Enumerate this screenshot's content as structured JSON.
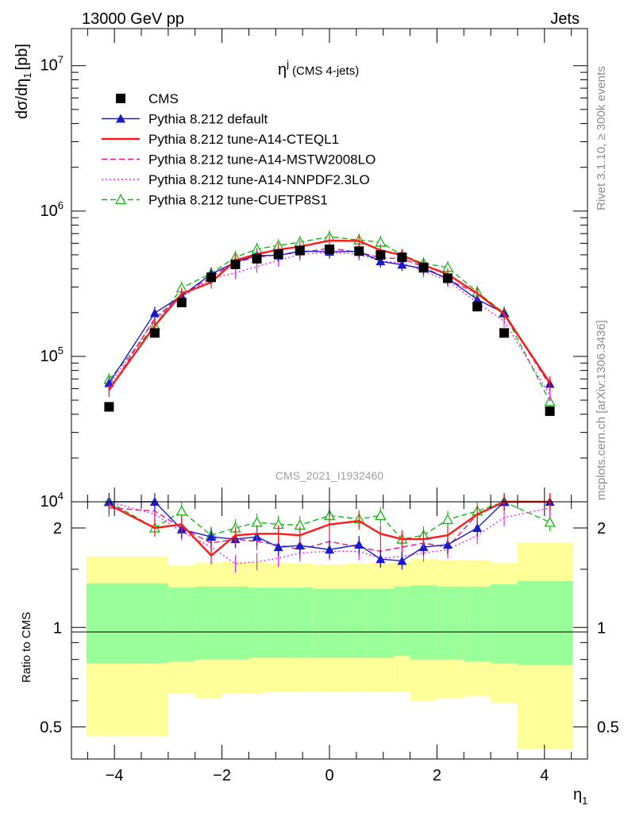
{
  "header": {
    "left": "13000 GeV pp",
    "right": "Jets",
    "plot_title": "η",
    "plot_title_sup": "j",
    "plot_title_note": "(CMS 4-jets)",
    "analysis_id": "CMS_2021_I1932460",
    "side_top": "Rivet 3.1.10, ≥ 300k events",
    "side_bottom": "mcplots.cern.ch [arXiv:1306.3436]"
  },
  "axes": {
    "main_ylabel": "dσ/dη",
    "main_ylabel_sub": "1",
    "main_ylabel_unit": "[pb]",
    "ratio_ylabel": "Ratio to CMS",
    "xlabel": "η",
    "xlabel_sub": "1",
    "x_ticks": [
      "−4",
      "−2",
      "0",
      "2",
      "4"
    ],
    "main_y_ticks": [
      {
        "base": "10",
        "exp": "4",
        "value": 10000
      },
      {
        "base": "10",
        "exp": "5",
        "value": 100000
      },
      {
        "base": "10",
        "exp": "6",
        "value": 1000000
      },
      {
        "base": "10",
        "exp": "7",
        "value": 10000000
      }
    ],
    "ratio_y_ticks": [
      "0.5",
      "1",
      "2"
    ]
  },
  "chart_data": {
    "type": "scatter",
    "xlim": [
      -4.8,
      4.8
    ],
    "main_ylim": [
      10000,
      18000000
    ],
    "main_yscale": "log",
    "ratio_ylim": [
      0.4,
      2.4
    ],
    "ratio_yscale": "log",
    "legend_placement": "top-left",
    "x": [
      -4.1,
      -3.25,
      -2.75,
      -2.2,
      -1.75,
      -1.35,
      -0.95,
      -0.55,
      0,
      0.55,
      0.95,
      1.35,
      1.75,
      2.2,
      2.75,
      3.25,
      4.1
    ],
    "bin_edges": [
      -4.7,
      -3.5,
      -3.0,
      -2.5,
      -2.0,
      -1.5,
      -1.2,
      -0.7,
      -0.3,
      0.3,
      0.7,
      1.2,
      1.5,
      2.0,
      2.5,
      3.0,
      3.5,
      4.7
    ],
    "band_inner": {
      "lo": [
        0.78,
        0.78,
        0.79,
        0.8,
        0.8,
        0.81,
        0.81,
        0.81,
        0.81,
        0.81,
        0.81,
        0.82,
        0.8,
        0.8,
        0.79,
        0.78,
        0.77
      ],
      "hi": [
        1.36,
        1.36,
        1.32,
        1.33,
        1.33,
        1.32,
        1.32,
        1.32,
        1.31,
        1.31,
        1.31,
        1.33,
        1.34,
        1.33,
        1.33,
        1.35,
        1.38
      ]
    },
    "band_outer": {
      "lo": [
        0.47,
        0.47,
        0.63,
        0.61,
        0.63,
        0.63,
        0.64,
        0.64,
        0.64,
        0.64,
        0.64,
        0.64,
        0.6,
        0.61,
        0.62,
        0.59,
        0.43
      ],
      "hi": [
        1.64,
        1.64,
        1.54,
        1.57,
        1.58,
        1.58,
        1.57,
        1.56,
        1.55,
        1.56,
        1.56,
        1.58,
        1.61,
        1.6,
        1.6,
        1.57,
        1.81
      ]
    },
    "series": [
      {
        "name": "CMS",
        "color": "#000000",
        "marker": "square",
        "line": "none",
        "values": [
          45000,
          145000,
          235000,
          350000,
          430000,
          470000,
          505000,
          535000,
          545000,
          530000,
          500000,
          480000,
          410000,
          345000,
          220000,
          145000,
          42000
        ]
      },
      {
        "name": "Pythia 8.212 default",
        "color": "#1a1acc",
        "marker": "triangle",
        "line": "solid",
        "ratio": [
          2.6,
          2.45,
          1.98,
          1.88,
          1.85,
          1.88,
          1.75,
          1.77,
          1.72,
          1.78,
          1.61,
          1.59,
          1.75,
          1.78,
          2.0,
          2.45,
          2.75
        ]
      },
      {
        "name": "Pythia 8.212 tune-A14-CTEQL1",
        "color": "#ff1a1a",
        "marker": "none",
        "line": "solid",
        "ratio": [
          2.35,
          2.0,
          2.05,
          1.65,
          1.9,
          1.92,
          1.92,
          1.9,
          2.05,
          2.1,
          1.92,
          1.85,
          1.85,
          1.9,
          2.2,
          2.4,
          2.8
        ]
      },
      {
        "name": "Pythia 8.212 tune-A14-MSTW2008LO",
        "color": "#e6148c",
        "marker": "none",
        "line": "dashed",
        "ratio": [
          2.3,
          2.25,
          2.0,
          1.8,
          1.85,
          1.82,
          1.78,
          1.72,
          1.82,
          1.75,
          1.7,
          1.75,
          1.8,
          1.75,
          2.2,
          2.4,
          2.7
        ]
      },
      {
        "name": "Pythia 8.212 tune-A14-NNPDF2.3LO",
        "color": "#ff1aff",
        "marker": "none",
        "line": "dotted",
        "ratio": [
          2.5,
          2.2,
          1.95,
          1.75,
          1.56,
          1.58,
          1.62,
          1.68,
          1.7,
          1.7,
          1.62,
          1.64,
          1.68,
          1.72,
          1.9,
          2.15,
          2.3
        ]
      },
      {
        "name": "Pythia 8.212 tune-CUETP8S1",
        "color": "#14b814",
        "marker": "open-triangle",
        "line": "dashed",
        "ratio": [
          2.75,
          2.0,
          2.25,
          1.9,
          2.0,
          2.08,
          2.05,
          2.04,
          2.18,
          2.13,
          2.18,
          1.85,
          1.9,
          2.12,
          2.25,
          2.45,
          2.08
        ]
      }
    ]
  }
}
